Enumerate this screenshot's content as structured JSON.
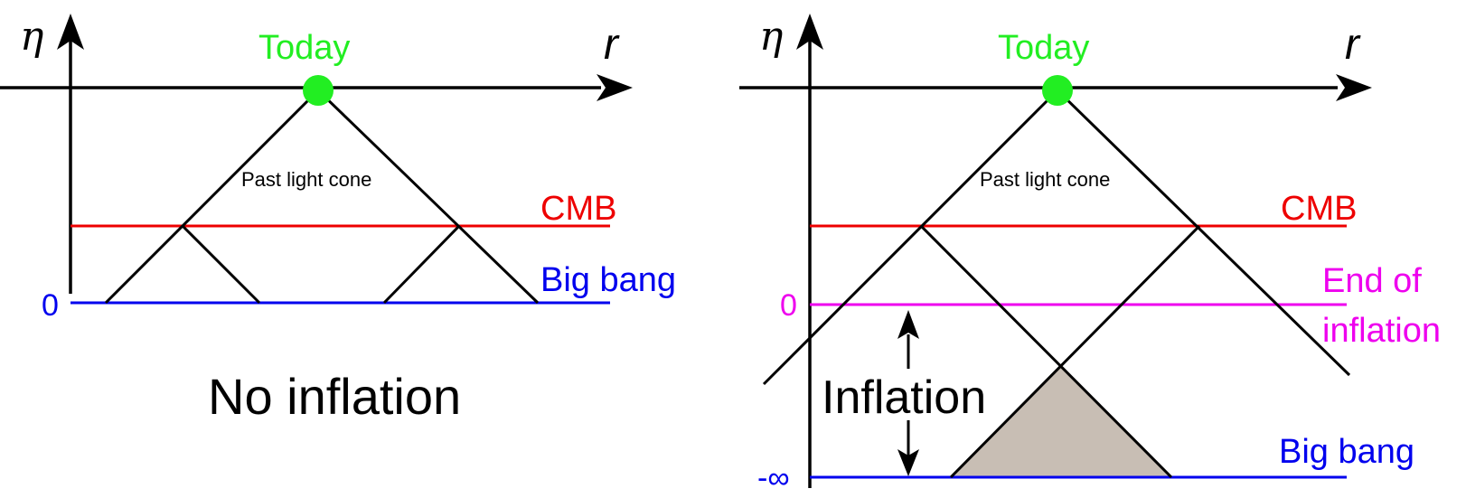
{
  "left_panel": {
    "eta_axis_label": "η",
    "r_axis_label": "r",
    "today_label": "Today",
    "cone_label": "Past light cone",
    "cmb_label": "CMB",
    "big_bang_label": "Big bang",
    "zero_tick": "0",
    "caption": "No inflation"
  },
  "right_panel": {
    "eta_axis_label": "η",
    "r_axis_label": "r",
    "today_label": "Today",
    "cone_label": "Past light cone",
    "cmb_label": "CMB",
    "end_of_inflation_line1": "End of",
    "end_of_inflation_line2": "inflation",
    "zero_tick": "0",
    "minus_infinity_tick": "-∞",
    "inflation_label": "Inflation",
    "big_bang_label": "Big bang"
  },
  "colors": {
    "today": "#22ee22",
    "cmb": "#ee0000",
    "big_bang": "#0000ee",
    "end_of_inflation": "#ee00ee",
    "overlap_fill": "#c8beb4",
    "axis": "#000000"
  }
}
